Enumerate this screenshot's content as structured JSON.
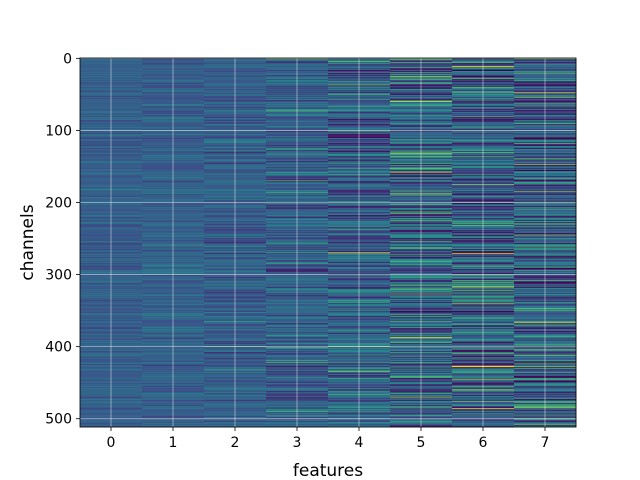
{
  "chart_data": {
    "type": "heatmap",
    "xlabel": "features",
    "ylabel": "channels",
    "x_ticks": [
      "0",
      "1",
      "2",
      "3",
      "4",
      "5",
      "6",
      "7"
    ],
    "y_ticks": [
      "0",
      "100",
      "200",
      "300",
      "400",
      "500"
    ],
    "y_tick_values": [
      0,
      100,
      200,
      300,
      400,
      500
    ],
    "n_features": 8,
    "n_channels": 512,
    "xlim": [
      -0.5,
      7.5
    ],
    "ylim": [
      511.5,
      -0.5
    ],
    "y_inverted": true,
    "grid": true,
    "colormap": "viridis",
    "column_spread": [
      0.08,
      0.09,
      0.12,
      0.16,
      0.22,
      0.28,
      0.3,
      0.3
    ],
    "highlighted_channels": [
      {
        "feature": 5,
        "channel": 25,
        "value": 0.85
      },
      {
        "feature": 5,
        "channel": 130,
        "value": 0.75
      },
      {
        "feature": 5,
        "channel": 188,
        "value": 0.85
      },
      {
        "feature": 5,
        "channel": 225,
        "value": 0.7
      },
      {
        "feature": 5,
        "channel": 375,
        "value": 0.0
      },
      {
        "feature": 6,
        "channel": 175,
        "value": 0.8
      },
      {
        "feature": 6,
        "channel": 232,
        "value": 0.75
      },
      {
        "feature": 6,
        "channel": 410,
        "value": 0.8
      },
      {
        "feature": 6,
        "channel": 427,
        "value": 0.95
      },
      {
        "feature": 7,
        "channel": 48,
        "value": 0.95
      },
      {
        "feature": 7,
        "channel": 263,
        "value": 0.7
      },
      {
        "feature": 7,
        "channel": 485,
        "value": 0.85
      },
      {
        "feature": 4,
        "channel": 400,
        "value": 0.85
      },
      {
        "feature": 2,
        "channel": 400,
        "value": 0.7
      }
    ]
  }
}
